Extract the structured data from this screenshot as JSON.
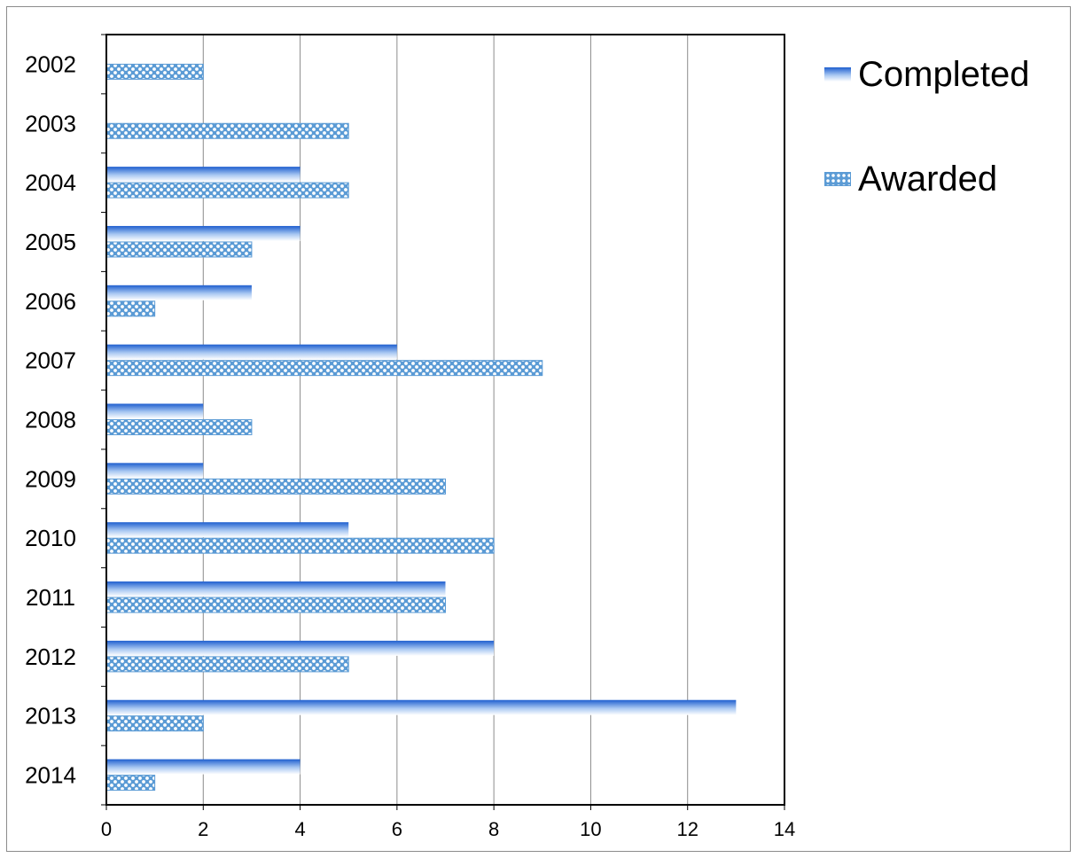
{
  "chart_data": {
    "type": "bar",
    "orientation": "horizontal",
    "categories": [
      "2002",
      "2003",
      "2004",
      "2005",
      "2006",
      "2007",
      "2008",
      "2009",
      "2010",
      "2011",
      "2012",
      "2013",
      "2014"
    ],
    "series": [
      {
        "name": "Completed",
        "values": [
          0,
          0,
          4,
          4,
          3,
          6,
          2,
          2,
          5,
          7,
          8,
          13,
          4
        ],
        "color": "#2f6fd0"
      },
      {
        "name": "Awarded",
        "values": [
          2,
          5,
          5,
          3,
          1,
          9,
          3,
          7,
          8,
          7,
          5,
          2,
          1
        ],
        "color": "#5b9bd5"
      }
    ],
    "xlim": [
      0,
      14
    ],
    "xticks": [
      "0",
      "2",
      "4",
      "6",
      "8",
      "10",
      "12",
      "14"
    ],
    "grid": true,
    "legend_position": "right"
  }
}
